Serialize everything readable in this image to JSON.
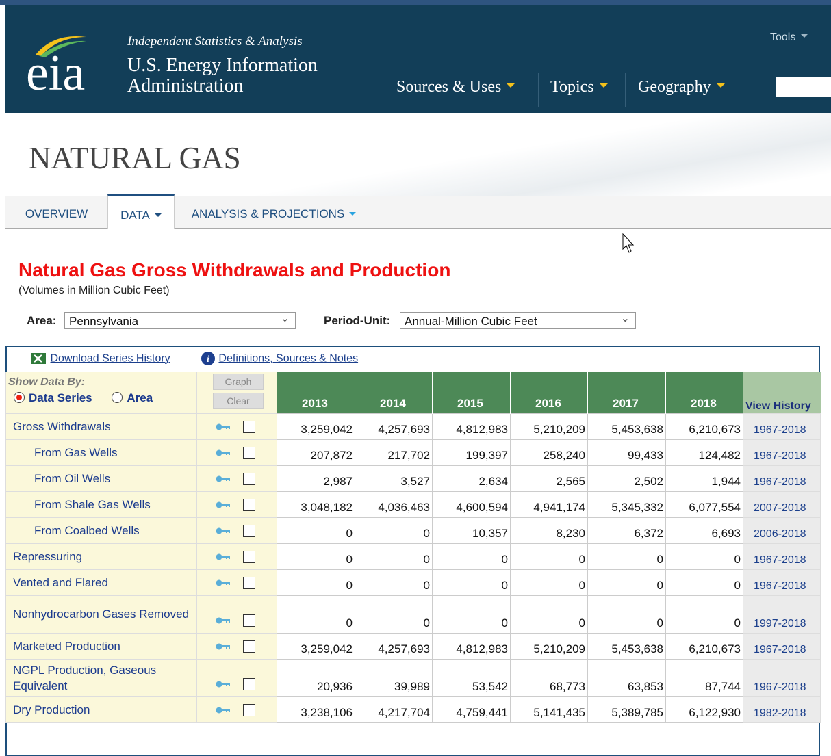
{
  "header": {
    "logo": "eia",
    "tagline": "Independent Statistics & Analysis",
    "org_line1": "U.S. Energy Information",
    "org_line2": "Administration",
    "nav": [
      "Sources & Uses",
      "Topics",
      "Geography"
    ],
    "tools": "Tools"
  },
  "page_title": "NATURAL GAS",
  "tabs": [
    "OVERVIEW",
    "DATA",
    "ANALYSIS & PROJECTIONS"
  ],
  "report": {
    "title": "Natural Gas Gross Withdrawals and Production",
    "subtitle": "(Volumes in Million Cubic Feet)",
    "area_label": "Area:",
    "area_value": "Pennsylvania",
    "period_label": "Period-Unit:",
    "period_value": "Annual-Million Cubic Feet"
  },
  "table": {
    "download": "Download Series History",
    "definitions": "Definitions, Sources & Notes",
    "show_by": "Show Data By:",
    "options": [
      "Data Series",
      "Area"
    ],
    "graph": "Graph",
    "clear": "Clear",
    "years": [
      "2013",
      "2014",
      "2015",
      "2016",
      "2017",
      "2018"
    ],
    "history_header": "View History",
    "rows": [
      {
        "label": "Gross Withdrawals",
        "values": [
          "3,259,042",
          "4,257,693",
          "4,812,983",
          "5,210,209",
          "5,453,638",
          "6,210,673"
        ],
        "history": "1967-2018"
      },
      {
        "label": "From Gas Wells",
        "indent": true,
        "values": [
          "207,872",
          "217,702",
          "199,397",
          "258,240",
          "99,433",
          "124,482"
        ],
        "history": "1967-2018"
      },
      {
        "label": "From Oil Wells",
        "indent": true,
        "values": [
          "2,987",
          "3,527",
          "2,634",
          "2,565",
          "2,502",
          "1,944"
        ],
        "history": "1967-2018"
      },
      {
        "label": "From Shale Gas Wells",
        "indent": true,
        "values": [
          "3,048,182",
          "4,036,463",
          "4,600,594",
          "4,941,174",
          "5,345,332",
          "6,077,554"
        ],
        "history": "2007-2018"
      },
      {
        "label": "From Coalbed Wells",
        "indent": true,
        "values": [
          "0",
          "0",
          "10,357",
          "8,230",
          "6,372",
          "6,693"
        ],
        "history": "2006-2018"
      },
      {
        "label": "Repressuring",
        "values": [
          "0",
          "0",
          "0",
          "0",
          "0",
          "0"
        ],
        "history": "1967-2018"
      },
      {
        "label": "Vented and Flared",
        "values": [
          "0",
          "0",
          "0",
          "0",
          "0",
          "0"
        ],
        "history": "1967-2018"
      },
      {
        "label": "Nonhydrocarbon Gases Removed",
        "values": [
          "0",
          "0",
          "0",
          "0",
          "0",
          "0"
        ],
        "history": "1997-2018"
      },
      {
        "label": "Marketed Production",
        "values": [
          "3,259,042",
          "4,257,693",
          "4,812,983",
          "5,210,209",
          "5,453,638",
          "6,210,673"
        ],
        "history": "1967-2018"
      },
      {
        "label": "NGPL Production, Gaseous Equivalent",
        "values": [
          "20,936",
          "39,989",
          "53,542",
          "68,773",
          "63,853",
          "87,744"
        ],
        "history": "1967-2018"
      },
      {
        "label": "Dry Production",
        "values": [
          "3,238,106",
          "4,217,704",
          "4,759,441",
          "5,141,435",
          "5,389,785",
          "6,122,930"
        ],
        "history": "1982-2018"
      }
    ]
  }
}
